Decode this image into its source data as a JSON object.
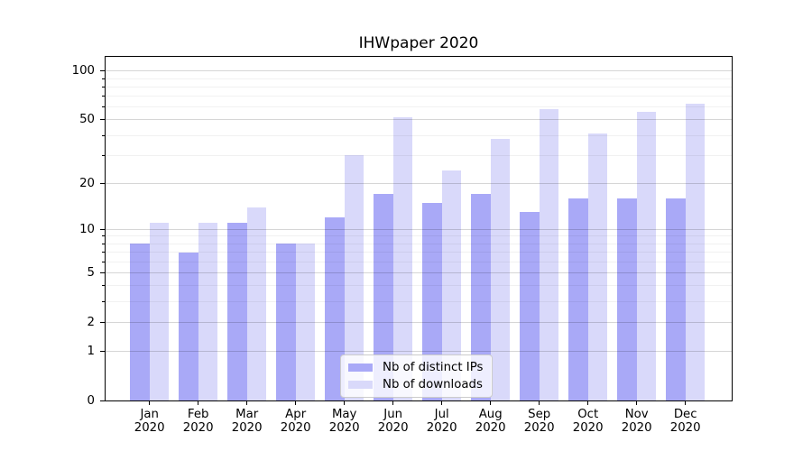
{
  "chart_data": {
    "type": "bar",
    "title": "IHWpaper 2020",
    "categories": [
      "Jan",
      "Feb",
      "Mar",
      "Apr",
      "May",
      "Jun",
      "Jul",
      "Aug",
      "Sep",
      "Oct",
      "Nov",
      "Dec"
    ],
    "category_year_line": "2020",
    "series": [
      {
        "name": "Nb of distinct IPs",
        "key": "ips",
        "color": "#a9a9f7",
        "values": [
          8,
          7,
          11,
          8,
          12,
          17,
          15,
          17,
          13,
          16,
          16,
          16
        ]
      },
      {
        "name": "Nb of downloads",
        "key": "downloads",
        "color": "#d9d9fa",
        "values": [
          11,
          11,
          14,
          8,
          30,
          52,
          24,
          38,
          58,
          41,
          56,
          63
        ]
      }
    ],
    "yscale": "log1p",
    "ylim": [
      0,
      122.5
    ],
    "yticks": [
      0,
      1,
      2,
      5,
      10,
      20,
      50,
      100
    ],
    "yticks_minor": [
      3,
      4,
      6,
      7,
      8,
      9,
      30,
      40,
      60,
      70,
      80,
      90
    ],
    "xlabel": "",
    "ylabel": "",
    "grid": true,
    "legend_position": "lower center"
  },
  "colors": {
    "background": "#ffffff",
    "grid_major": "#d6d6d6",
    "grid_minor": "#ededed",
    "spine": "#000000",
    "legend_border": "#cccccc"
  }
}
